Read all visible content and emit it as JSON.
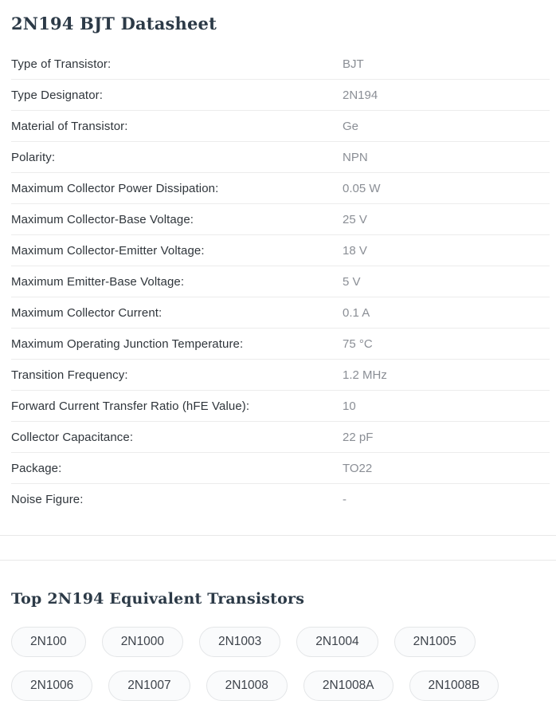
{
  "page": {
    "title": "2N194 BJT Datasheet"
  },
  "datasheet": {
    "rows": [
      {
        "label": "Type of Transistor:",
        "value": "BJT"
      },
      {
        "label": "Type Designator:",
        "value": "2N194"
      },
      {
        "label": "Material of Transistor:",
        "value": "Ge"
      },
      {
        "label": "Polarity:",
        "value": "NPN"
      },
      {
        "label": "Maximum Collector Power Dissipation:",
        "value": "0.05 W"
      },
      {
        "label": "Maximum Collector-Base Voltage:",
        "value": "25 V"
      },
      {
        "label": "Maximum Collector-Emitter Voltage:",
        "value": "18 V"
      },
      {
        "label": "Maximum Emitter-Base Voltage:",
        "value": "5 V"
      },
      {
        "label": "Maximum Collector Current:",
        "value": "0.1 A"
      },
      {
        "label": "Maximum Operating Junction Temperature:",
        "value": "75 °C"
      },
      {
        "label": "Transition Frequency:",
        "value": "1.2 MHz"
      },
      {
        "label": "Forward Current Transfer Ratio (hFE Value):",
        "value": "10"
      },
      {
        "label": "Collector Capacitance:",
        "value": "22 pF"
      },
      {
        "label": "Package:",
        "value": "TO22"
      },
      {
        "label": "Noise Figure:",
        "value": "-"
      }
    ]
  },
  "equivalents": {
    "title": "Top 2N194 Equivalent Transistors",
    "items": [
      "2N100",
      "2N1000",
      "2N1003",
      "2N1004",
      "2N1005",
      "2N1006",
      "2N1007",
      "2N1008",
      "2N1008A",
      "2N1008B"
    ]
  },
  "colors": {
    "heading": "#2c3a47",
    "label_text": "#2f353b",
    "value_text": "#8a8e95",
    "row_divider": "#ececec",
    "section_divider": "#e8e8e8",
    "pill_background": "#fafbfc",
    "pill_border": "#e4e6e8",
    "pill_text": "#3d434b"
  }
}
